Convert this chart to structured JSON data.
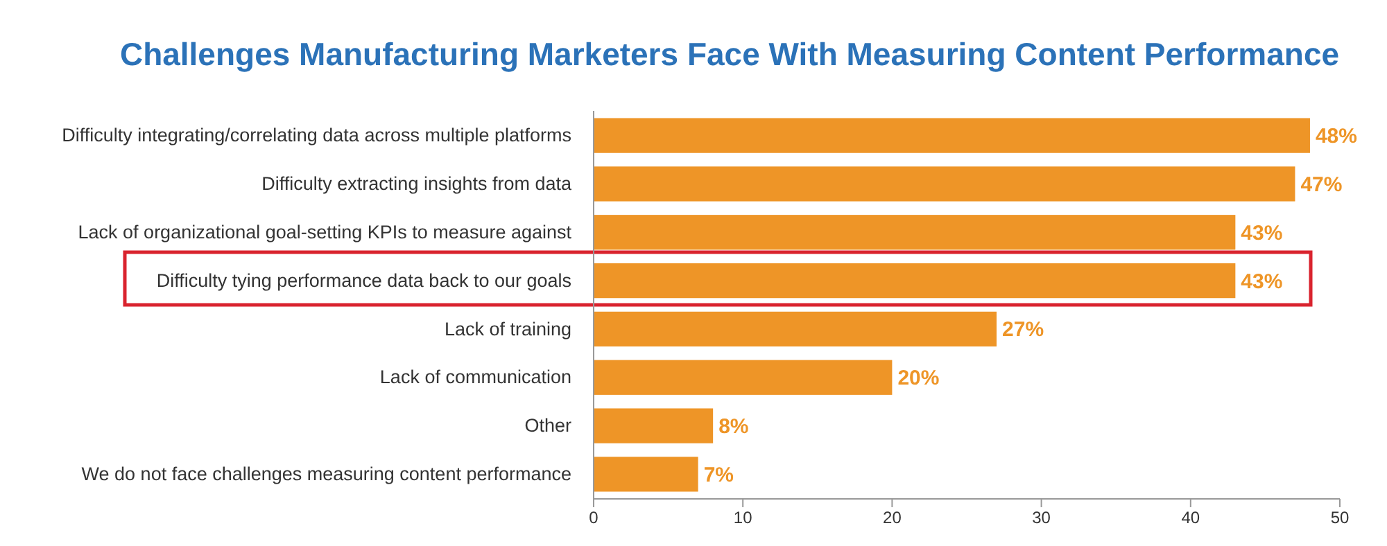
{
  "chart_data": {
    "type": "bar",
    "orientation": "horizontal",
    "title": "Challenges Manufacturing Marketers Face With Measuring Content Performance",
    "categories": [
      "Difficulty integrating/correlating data across multiple platforms",
      "Difficulty extracting insights from data",
      "Lack of organizational goal-setting KPIs to measure against",
      "Difficulty tying performance data back to our goals",
      "Lack of training",
      "Lack of communication",
      "Other",
      "We do not face challenges measuring content performance"
    ],
    "values": [
      48,
      47,
      43,
      43,
      27,
      20,
      8,
      7
    ],
    "value_labels": [
      "48%",
      "47%",
      "43%",
      "43%",
      "27%",
      "20%",
      "8%",
      "7%"
    ],
    "color": "#ee9527",
    "xlim": [
      0,
      50
    ],
    "xticks": [
      0,
      10,
      20,
      30,
      40,
      50
    ]
  }
}
